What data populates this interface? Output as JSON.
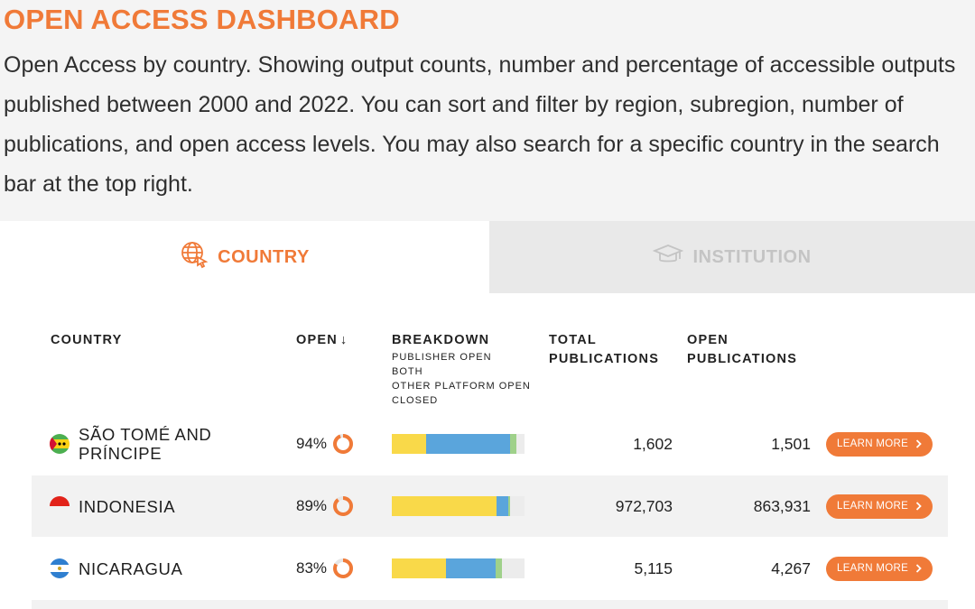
{
  "header": {
    "title": "OPEN ACCESS DASHBOARD",
    "description": "Open Access by country. Showing output counts, number and percentage of accessible outputs published between 2000 and 2022. You can sort and filter by region, subregion, number of publications, and open access levels. You may also search for a specific country in the search bar at the top right."
  },
  "tabs": [
    {
      "label": "COUNTRY",
      "icon": "globe-cursor-icon",
      "active": true
    },
    {
      "label": "INSTITUTION",
      "icon": "graduation-cap-icon",
      "active": false
    }
  ],
  "table": {
    "headers": {
      "country": "COUNTRY",
      "open": "OPEN",
      "open_sort_icon": "↓",
      "breakdown": "BREAKDOWN",
      "breakdown_legend": [
        "PUBLISHER OPEN",
        "BOTH",
        "OTHER PLATFORM OPEN",
        "CLOSED"
      ],
      "total_line1": "TOTAL",
      "total_line2": "PUBLICATIONS",
      "open_pub_line1": "OPEN",
      "open_pub_line2": "PUBLICATIONS"
    },
    "colors": {
      "accent": "#f07a38",
      "publisher_open": "#f9d949",
      "both": "#5aa5dc",
      "other_platform_open": "#9fd18a",
      "closed": "#ececec"
    },
    "learn_more_label": "LEARN MORE",
    "rows": [
      {
        "country_line1": "SÃO TOMÉ AND",
        "country_line2": "PRÍNCIPE",
        "flag": "sao-tome-flag-icon",
        "open_pct": "94%",
        "open_fraction": 0.94,
        "breakdown": {
          "publisher_open": 26,
          "both": 63,
          "other_platform_open": 5,
          "closed": 6
        },
        "total": "1,602",
        "open_publications": "1,501"
      },
      {
        "country_line1": "INDONESIA",
        "country_line2": "",
        "flag": "indonesia-flag-icon",
        "open_pct": "89%",
        "open_fraction": 0.89,
        "breakdown": {
          "publisher_open": 79,
          "both": 9,
          "other_platform_open": 1,
          "closed": 11
        },
        "total": "972,703",
        "open_publications": "863,931"
      },
      {
        "country_line1": "NICARAGUA",
        "country_line2": "",
        "flag": "nicaragua-flag-icon",
        "open_pct": "83%",
        "open_fraction": 0.83,
        "breakdown": {
          "publisher_open": 41,
          "both": 37,
          "other_platform_open": 5,
          "closed": 17
        },
        "total": "5,115",
        "open_publications": "4,267"
      }
    ]
  }
}
